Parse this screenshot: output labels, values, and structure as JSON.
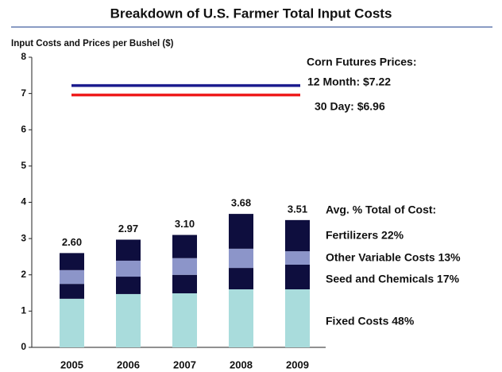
{
  "chart_data": {
    "type": "bar",
    "stacked": true,
    "title": "Breakdown of U.S. Farmer Total Input Costs",
    "ylabel": "Input Costs and Prices per Bushel ($)",
    "categories": [
      "2005",
      "2006",
      "2007",
      "2008",
      "2009"
    ],
    "series": [
      {
        "name": "Fertilizers 22%",
        "color": "#0e0e3e",
        "values": [
          0.47,
          0.58,
          0.64,
          0.96,
          0.86
        ]
      },
      {
        "name": "Other Variable Costs 13%",
        "color": "#8c95c9",
        "values": [
          0.38,
          0.44,
          0.46,
          0.53,
          0.37
        ]
      },
      {
        "name": "Seed and Chemicals 17%",
        "color": "#0e0e3e",
        "values": [
          0.41,
          0.48,
          0.51,
          0.59,
          0.68
        ]
      },
      {
        "name": "Fixed Costs 48%",
        "color": "#a9dcdc",
        "values": [
          1.34,
          1.47,
          1.49,
          1.6,
          1.6
        ]
      }
    ],
    "totals": {
      "values": [
        2.6,
        2.97,
        3.1,
        3.68,
        3.51
      ],
      "value_labels": [
        "2.60",
        "2.97",
        "3.10",
        "3.68",
        "3.51"
      ]
    },
    "legend_title": "Avg. % Total of Cost:",
    "futures_title": "Corn Futures Prices:",
    "futures": [
      {
        "label": "12 Month: $7.22",
        "value": 7.22,
        "color": "#1c1c8e"
      },
      {
        "label": "30 Day: $6.96",
        "value": 6.96,
        "color": "#ee1c1c"
      }
    ],
    "ylim": [
      0,
      8
    ],
    "yticks": [
      0,
      1,
      2,
      3,
      4,
      5,
      6,
      7,
      8
    ]
  }
}
